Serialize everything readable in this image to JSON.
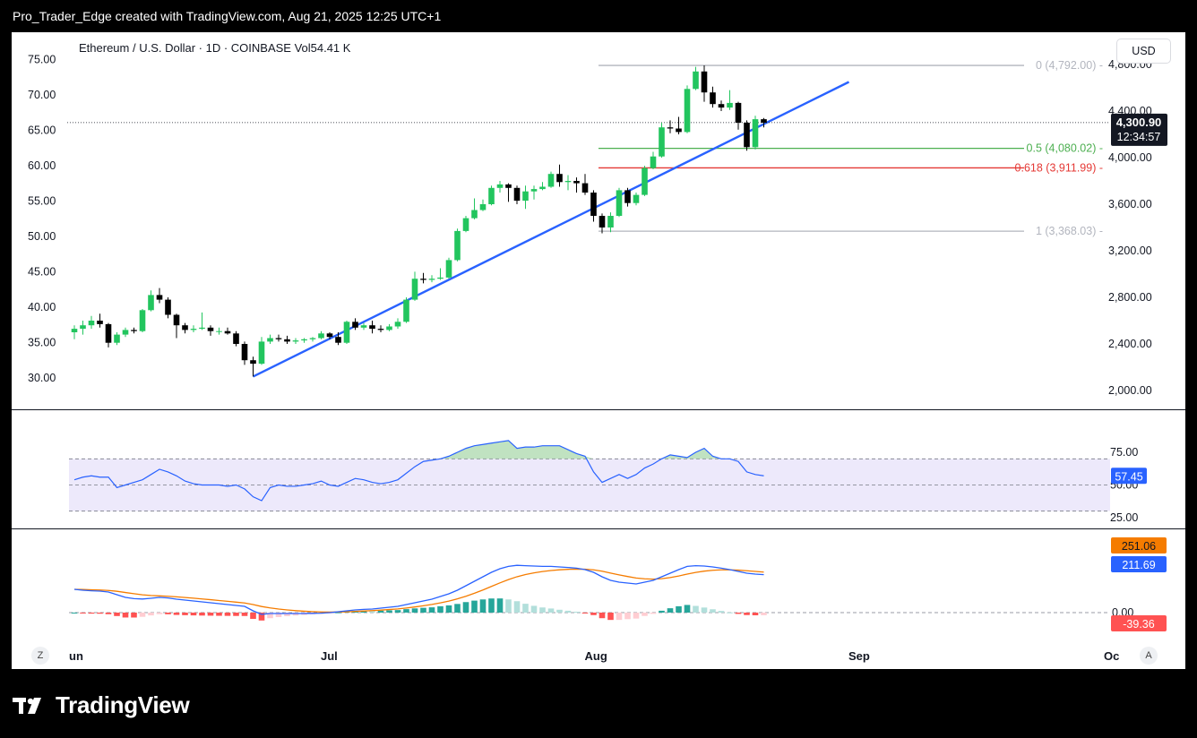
{
  "caption": "Pro_Trader_Edge created with TradingView.com, Aug 21, 2025 12:25 UTC+1",
  "header": {
    "title": "Ethereum / U.S. Dollar · 1D · COINBASE  Vol54.41 K",
    "currency": "USD"
  },
  "footer": {
    "brand": "TradingView"
  },
  "buttons": {
    "zoom": "Z",
    "auto": "A"
  },
  "colors": {
    "bull": "#22c55e",
    "bear": "#000000",
    "trendline": "#2962ff",
    "rsi_line": "#2962ff",
    "macd_line": "#2962ff",
    "signal_line": "#f57c00",
    "fib_0": "#b2b5be",
    "fib_05": "#4caf50",
    "fib_0618": "#e53935",
    "fib_1": "#b2b5be"
  },
  "chart_data": [
    {
      "id": "price",
      "type": "candlestick",
      "title": "Ethereum / U.S. Dollar · 1D · COINBASE",
      "right_ticks": [
        "2,000.00",
        "2,400.00",
        "2,800.00",
        "3,200.00",
        "3,600.00",
        "4,000.00",
        "4,400.00",
        "4,800.00"
      ],
      "left_ticks": [
        "30.00",
        "35.00",
        "40.00",
        "45.00",
        "50.00",
        "55.00",
        "60.00",
        "65.00",
        "70.00",
        "75.00"
      ],
      "x_ticks": [
        "un",
        "Jul",
        "Aug",
        "Sep",
        "Oc"
      ],
      "ylim": [
        1900,
        4900
      ],
      "last_price": {
        "value": "4,300.90",
        "countdown": "12:34:57",
        "numeric": 4300.9
      },
      "fib_levels": [
        {
          "label": "0 (4,792.00)",
          "value": 4792
        },
        {
          "label": "0.5 (4,080.02)",
          "value": 4080.02
        },
        {
          "label": "0.618 (3,911.99)",
          "value": 3911.99
        },
        {
          "label": "1 (3,368.03)",
          "value": 3368.03
        }
      ],
      "trendline": {
        "from": {
          "date": "2025-06-22",
          "price": 2120
        },
        "to": {
          "date": "2025-08-31",
          "price": 4650
        }
      },
      "candles": [
        {
          "d": "2025-06-01",
          "o": 2500,
          "h": 2560,
          "l": 2440,
          "c": 2530
        },
        {
          "d": "2025-06-02",
          "o": 2530,
          "h": 2600,
          "l": 2480,
          "c": 2560
        },
        {
          "d": "2025-06-03",
          "o": 2560,
          "h": 2640,
          "l": 2530,
          "c": 2600
        },
        {
          "d": "2025-06-04",
          "o": 2600,
          "h": 2660,
          "l": 2540,
          "c": 2570
        },
        {
          "d": "2025-06-05",
          "o": 2570,
          "h": 2580,
          "l": 2370,
          "c": 2410
        },
        {
          "d": "2025-06-06",
          "o": 2410,
          "h": 2500,
          "l": 2390,
          "c": 2480
        },
        {
          "d": "2025-06-07",
          "o": 2480,
          "h": 2540,
          "l": 2460,
          "c": 2520
        },
        {
          "d": "2025-06-08",
          "o": 2520,
          "h": 2540,
          "l": 2490,
          "c": 2510
        },
        {
          "d": "2025-06-09",
          "o": 2510,
          "h": 2700,
          "l": 2500,
          "c": 2690
        },
        {
          "d": "2025-06-10",
          "o": 2690,
          "h": 2860,
          "l": 2680,
          "c": 2820
        },
        {
          "d": "2025-06-11",
          "o": 2820,
          "h": 2880,
          "l": 2750,
          "c": 2780
        },
        {
          "d": "2025-06-12",
          "o": 2780,
          "h": 2800,
          "l": 2620,
          "c": 2650
        },
        {
          "d": "2025-06-13",
          "o": 2650,
          "h": 2660,
          "l": 2450,
          "c": 2560
        },
        {
          "d": "2025-06-14",
          "o": 2560,
          "h": 2580,
          "l": 2490,
          "c": 2520
        },
        {
          "d": "2025-06-15",
          "o": 2520,
          "h": 2560,
          "l": 2500,
          "c": 2530
        },
        {
          "d": "2025-06-16",
          "o": 2530,
          "h": 2670,
          "l": 2520,
          "c": 2540
        },
        {
          "d": "2025-06-17",
          "o": 2540,
          "h": 2560,
          "l": 2470,
          "c": 2510
        },
        {
          "d": "2025-06-18",
          "o": 2510,
          "h": 2540,
          "l": 2480,
          "c": 2510
        },
        {
          "d": "2025-06-19",
          "o": 2510,
          "h": 2540,
          "l": 2480,
          "c": 2490
        },
        {
          "d": "2025-06-20",
          "o": 2490,
          "h": 2510,
          "l": 2380,
          "c": 2400
        },
        {
          "d": "2025-06-21",
          "o": 2400,
          "h": 2420,
          "l": 2220,
          "c": 2260
        },
        {
          "d": "2025-06-22",
          "o": 2260,
          "h": 2290,
          "l": 2120,
          "c": 2230
        },
        {
          "d": "2025-06-23",
          "o": 2230,
          "h": 2460,
          "l": 2220,
          "c": 2420
        },
        {
          "d": "2025-06-24",
          "o": 2420,
          "h": 2480,
          "l": 2400,
          "c": 2450
        },
        {
          "d": "2025-06-25",
          "o": 2450,
          "h": 2480,
          "l": 2420,
          "c": 2440
        },
        {
          "d": "2025-06-26",
          "o": 2440,
          "h": 2470,
          "l": 2400,
          "c": 2420
        },
        {
          "d": "2025-06-27",
          "o": 2420,
          "h": 2450,
          "l": 2400,
          "c": 2430
        },
        {
          "d": "2025-06-28",
          "o": 2430,
          "h": 2450,
          "l": 2410,
          "c": 2440
        },
        {
          "d": "2025-06-29",
          "o": 2440,
          "h": 2460,
          "l": 2420,
          "c": 2450
        },
        {
          "d": "2025-06-30",
          "o": 2450,
          "h": 2510,
          "l": 2440,
          "c": 2490
        },
        {
          "d": "2025-07-01",
          "o": 2490,
          "h": 2500,
          "l": 2440,
          "c": 2460
        },
        {
          "d": "2025-07-02",
          "o": 2460,
          "h": 2500,
          "l": 2390,
          "c": 2410
        },
        {
          "d": "2025-07-03",
          "o": 2410,
          "h": 2600,
          "l": 2400,
          "c": 2590
        },
        {
          "d": "2025-07-04",
          "o": 2590,
          "h": 2620,
          "l": 2520,
          "c": 2540
        },
        {
          "d": "2025-07-05",
          "o": 2540,
          "h": 2580,
          "l": 2520,
          "c": 2560
        },
        {
          "d": "2025-07-06",
          "o": 2560,
          "h": 2600,
          "l": 2490,
          "c": 2530
        },
        {
          "d": "2025-07-07",
          "o": 2530,
          "h": 2560,
          "l": 2500,
          "c": 2520
        },
        {
          "d": "2025-07-08",
          "o": 2520,
          "h": 2570,
          "l": 2510,
          "c": 2550
        },
        {
          "d": "2025-07-09",
          "o": 2550,
          "h": 2620,
          "l": 2530,
          "c": 2590
        },
        {
          "d": "2025-07-10",
          "o": 2590,
          "h": 2800,
          "l": 2580,
          "c": 2780
        },
        {
          "d": "2025-07-11",
          "o": 2780,
          "h": 3020,
          "l": 2770,
          "c": 2960
        },
        {
          "d": "2025-07-12",
          "o": 2960,
          "h": 3010,
          "l": 2920,
          "c": 2950
        },
        {
          "d": "2025-07-13",
          "o": 2950,
          "h": 2990,
          "l": 2930,
          "c": 2960
        },
        {
          "d": "2025-07-14",
          "o": 2960,
          "h": 3050,
          "l": 2950,
          "c": 2970
        },
        {
          "d": "2025-07-15",
          "o": 2970,
          "h": 3140,
          "l": 2960,
          "c": 3120
        },
        {
          "d": "2025-07-16",
          "o": 3120,
          "h": 3390,
          "l": 3110,
          "c": 3370
        },
        {
          "d": "2025-07-17",
          "o": 3370,
          "h": 3500,
          "l": 3360,
          "c": 3480
        },
        {
          "d": "2025-07-18",
          "o": 3480,
          "h": 3650,
          "l": 3470,
          "c": 3550
        },
        {
          "d": "2025-07-19",
          "o": 3550,
          "h": 3640,
          "l": 3540,
          "c": 3600
        },
        {
          "d": "2025-07-20",
          "o": 3600,
          "h": 3760,
          "l": 3590,
          "c": 3740
        },
        {
          "d": "2025-07-21",
          "o": 3740,
          "h": 3800,
          "l": 3700,
          "c": 3770
        },
        {
          "d": "2025-07-22",
          "o": 3770,
          "h": 3780,
          "l": 3620,
          "c": 3740
        },
        {
          "d": "2025-07-23",
          "o": 3740,
          "h": 3760,
          "l": 3600,
          "c": 3630
        },
        {
          "d": "2025-07-24",
          "o": 3630,
          "h": 3760,
          "l": 3560,
          "c": 3710
        },
        {
          "d": "2025-07-25",
          "o": 3710,
          "h": 3760,
          "l": 3640,
          "c": 3730
        },
        {
          "d": "2025-07-26",
          "o": 3730,
          "h": 3790,
          "l": 3720,
          "c": 3750
        },
        {
          "d": "2025-07-27",
          "o": 3750,
          "h": 3880,
          "l": 3740,
          "c": 3860
        },
        {
          "d": "2025-07-28",
          "o": 3860,
          "h": 3940,
          "l": 3750,
          "c": 3790
        },
        {
          "d": "2025-07-29",
          "o": 3790,
          "h": 3850,
          "l": 3720,
          "c": 3800
        },
        {
          "d": "2025-07-30",
          "o": 3800,
          "h": 3830,
          "l": 3700,
          "c": 3780
        },
        {
          "d": "2025-07-31",
          "o": 3780,
          "h": 3860,
          "l": 3680,
          "c": 3700
        },
        {
          "d": "2025-08-01",
          "o": 3700,
          "h": 3720,
          "l": 3450,
          "c": 3500
        },
        {
          "d": "2025-08-02",
          "o": 3500,
          "h": 3520,
          "l": 3350,
          "c": 3400
        },
        {
          "d": "2025-08-03",
          "o": 3400,
          "h": 3530,
          "l": 3360,
          "c": 3500
        },
        {
          "d": "2025-08-04",
          "o": 3500,
          "h": 3740,
          "l": 3490,
          "c": 3720
        },
        {
          "d": "2025-08-05",
          "o": 3720,
          "h": 3740,
          "l": 3580,
          "c": 3610
        },
        {
          "d": "2025-08-06",
          "o": 3610,
          "h": 3700,
          "l": 3590,
          "c": 3680
        },
        {
          "d": "2025-08-07",
          "o": 3680,
          "h": 3930,
          "l": 3670,
          "c": 3910
        },
        {
          "d": "2025-08-08",
          "o": 3910,
          "h": 4050,
          "l": 3900,
          "c": 4010
        },
        {
          "d": "2025-08-09",
          "o": 4010,
          "h": 4300,
          "l": 4000,
          "c": 4260
        },
        {
          "d": "2025-08-10",
          "o": 4260,
          "h": 4320,
          "l": 4210,
          "c": 4250
        },
        {
          "d": "2025-08-11",
          "o": 4250,
          "h": 4350,
          "l": 4200,
          "c": 4220
        },
        {
          "d": "2025-08-12",
          "o": 4220,
          "h": 4620,
          "l": 4210,
          "c": 4590
        },
        {
          "d": "2025-08-13",
          "o": 4590,
          "h": 4780,
          "l": 4580,
          "c": 4740
        },
        {
          "d": "2025-08-14",
          "o": 4740,
          "h": 4792,
          "l": 4480,
          "c": 4560
        },
        {
          "d": "2025-08-15",
          "o": 4560,
          "h": 4610,
          "l": 4430,
          "c": 4460
        },
        {
          "d": "2025-08-16",
          "o": 4460,
          "h": 4490,
          "l": 4400,
          "c": 4430
        },
        {
          "d": "2025-08-17",
          "o": 4430,
          "h": 4580,
          "l": 4410,
          "c": 4470
        },
        {
          "d": "2025-08-18",
          "o": 4470,
          "h": 4480,
          "l": 4240,
          "c": 4300
        },
        {
          "d": "2025-08-19",
          "o": 4300,
          "h": 4320,
          "l": 4060,
          "c": 4090
        },
        {
          "d": "2025-08-20",
          "o": 4090,
          "h": 4360,
          "l": 4070,
          "c": 4330
        },
        {
          "d": "2025-08-21",
          "o": 4330,
          "h": 4340,
          "l": 4260,
          "c": 4300
        }
      ]
    },
    {
      "id": "rsi",
      "type": "line",
      "ticks": [
        "25.00",
        "50.00",
        "75.00"
      ],
      "ylim": [
        20,
        85
      ],
      "band": [
        30,
        70
      ],
      "last_value": "57.45",
      "values": [
        54,
        56,
        57,
        56,
        56,
        48,
        50,
        52,
        54,
        58,
        62,
        60,
        57,
        53,
        51,
        50,
        50,
        50,
        49,
        50,
        47,
        41,
        38,
        48,
        50,
        49,
        49,
        50,
        51,
        53,
        50,
        49,
        52,
        55,
        54,
        52,
        51,
        52,
        54,
        59,
        64,
        68,
        69,
        70,
        72,
        75,
        78,
        80,
        81,
        82,
        83,
        84,
        78,
        79,
        79,
        80,
        80,
        80,
        77,
        74,
        72,
        60,
        52,
        55,
        58,
        55,
        58,
        63,
        66,
        70,
        73,
        72,
        71,
        75,
        78,
        72,
        70,
        70,
        68,
        60,
        58,
        57
      ]
    },
    {
      "id": "macd",
      "type": "line",
      "ylim": [
        -70,
        300
      ],
      "zero_tick": "0.00",
      "macd_value": "211.69",
      "signal_value": "251.06",
      "hist_value": "-39.36",
      "macd": [
        130,
        125,
        122,
        120,
        115,
        100,
        85,
        78,
        76,
        80,
        85,
        82,
        75,
        70,
        65,
        60,
        55,
        50,
        45,
        40,
        35,
        10,
        -10,
        -5,
        -5,
        -5,
        -5,
        -5,
        -4,
        -3,
        0,
        5,
        10,
        15,
        18,
        20,
        25,
        30,
        35,
        45,
        55,
        65,
        75,
        90,
        105,
        125,
        150,
        175,
        200,
        225,
        245,
        258,
        264,
        262,
        260,
        258,
        258,
        255,
        252,
        248,
        240,
        225,
        200,
        180,
        170,
        165,
        160,
        170,
        180,
        200,
        220,
        240,
        258,
        262,
        260,
        255,
        248,
        240,
        230,
        220,
        215,
        212
      ]
    }
  ]
}
